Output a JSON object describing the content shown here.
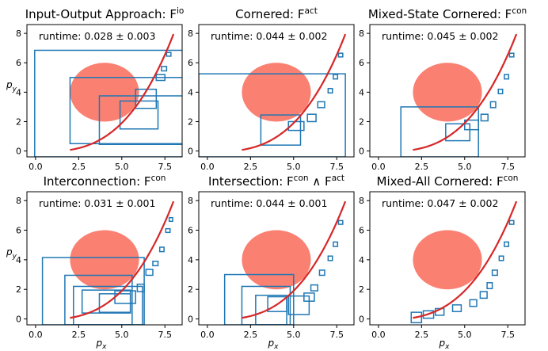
{
  "figure": {
    "xlabel": "p",
    "xlabel_sub": "x",
    "ylabel": "p",
    "ylabel_sub": "y",
    "x_ticks": [
      "0.0",
      "2.5",
      "5.0",
      "7.5"
    ],
    "y_ticks": [
      "0",
      "2",
      "4",
      "6",
      "8"
    ]
  },
  "colors": {
    "obstacle": "#fa8072",
    "boxes": "#1f77b4",
    "trajectory": "#d62728"
  },
  "chart_data": [
    {
      "type": "scatter",
      "title": "Input-Output Approach: F",
      "title_sup": "io",
      "runtime": "runtime: 0.028 ± 0.003",
      "xlim": [
        -0.5,
        8.5
      ],
      "ylim": [
        -0.4,
        8.6
      ],
      "obstacle": {
        "center": [
          4.0,
          4.0
        ],
        "rx": 2.0,
        "ry": 2.0
      },
      "trajectory": {
        "from": 2.0,
        "to": 8.0
      },
      "boxes": [
        [
          -0.05,
          8.9,
          -0.4,
          6.85
        ],
        [
          2.0,
          8.9,
          0.5,
          5.0
        ],
        [
          3.7,
          8.9,
          0.45,
          3.75
        ],
        [
          4.9,
          7.1,
          1.5,
          3.4
        ],
        [
          5.8,
          7.0,
          2.9,
          4.2
        ],
        [
          7.0,
          7.5,
          4.8,
          5.2
        ],
        [
          7.3,
          7.6,
          5.45,
          5.75
        ],
        [
          7.6,
          7.85,
          6.45,
          6.7
        ]
      ]
    },
    {
      "type": "scatter",
      "title": "Cornered: F",
      "title_sup": "act",
      "runtime": "runtime: 0.044 ± 0.002",
      "xlim": [
        -0.5,
        8.5
      ],
      "ylim": [
        -0.4,
        8.6
      ],
      "obstacle": {
        "center": [
          4.0,
          4.0
        ],
        "rx": 2.0,
        "ry": 2.0
      },
      "trajectory": {
        "from": 2.0,
        "to": 8.0
      },
      "boxes": [
        [
          -0.5,
          8.0,
          -0.4,
          5.25
        ],
        [
          3.1,
          5.4,
          0.4,
          2.45
        ],
        [
          4.7,
          5.6,
          1.4,
          2.0
        ],
        [
          5.8,
          6.3,
          2.0,
          2.5
        ],
        [
          6.4,
          6.8,
          2.95,
          3.35
        ],
        [
          7.0,
          7.25,
          3.95,
          4.25
        ],
        [
          7.3,
          7.55,
          4.9,
          5.2
        ],
        [
          7.6,
          7.85,
          6.4,
          6.65
        ]
      ]
    },
    {
      "type": "scatter",
      "title": "Mixed-State Cornered: F",
      "title_sup": "con",
      "runtime": "runtime: 0.045 ± 0.002",
      "xlim": [
        -0.5,
        8.5
      ],
      "ylim": [
        -0.4,
        8.6
      ],
      "obstacle": {
        "center": [
          4.0,
          4.0
        ],
        "rx": 2.0,
        "ry": 2.0
      },
      "trajectory": {
        "from": 2.0,
        "to": 8.0
      },
      "boxes": [
        [
          1.3,
          5.8,
          -0.4,
          3.0
        ],
        [
          3.9,
          5.3,
          0.7,
          1.85
        ],
        [
          5.0,
          5.8,
          1.45,
          2.1
        ],
        [
          5.95,
          6.35,
          2.05,
          2.5
        ],
        [
          6.5,
          6.8,
          2.95,
          3.35
        ],
        [
          6.95,
          7.2,
          3.9,
          4.2
        ],
        [
          7.3,
          7.55,
          4.9,
          5.2
        ],
        [
          7.6,
          7.85,
          6.4,
          6.65
        ]
      ]
    },
    {
      "type": "scatter",
      "title": "Interconnection: F",
      "title_sup": "con",
      "runtime": "runtime: 0.031 ± 0.001",
      "xlim": [
        -0.5,
        8.5
      ],
      "ylim": [
        -0.4,
        8.6
      ],
      "obstacle": {
        "center": [
          4.0,
          4.0
        ],
        "rx": 2.0,
        "ry": 2.0
      },
      "trajectory": {
        "from": 2.0,
        "to": 8.0
      },
      "boxes": [
        [
          0.4,
          6.3,
          -0.4,
          4.15
        ],
        [
          1.7,
          5.6,
          -0.4,
          2.95
        ],
        [
          2.2,
          6.2,
          -0.4,
          2.2
        ],
        [
          2.7,
          5.5,
          0.4,
          1.95
        ],
        [
          3.7,
          5.5,
          0.45,
          1.7
        ],
        [
          4.6,
          5.8,
          1.05,
          1.9
        ],
        [
          5.9,
          6.3,
          1.85,
          2.35
        ],
        [
          6.4,
          6.8,
          2.95,
          3.35
        ],
        [
          6.8,
          7.1,
          3.6,
          3.9
        ],
        [
          7.2,
          7.45,
          4.55,
          4.85
        ],
        [
          7.55,
          7.8,
          5.85,
          6.1
        ],
        [
          7.75,
          7.95,
          6.6,
          6.85
        ]
      ]
    },
    {
      "type": "scatter",
      "title": "Intersection: F",
      "title_sup": "con",
      "title_mid": " ∧ F",
      "title_sup2": "act",
      "runtime": "runtime: 0.044 ± 0.001",
      "xlim": [
        -0.5,
        8.5
      ],
      "ylim": [
        -0.4,
        8.6
      ],
      "obstacle": {
        "center": [
          4.0,
          4.0
        ],
        "rx": 2.0,
        "ry": 2.0
      },
      "trajectory": {
        "from": 2.0,
        "to": 8.0
      },
      "boxes": [
        [
          1.0,
          5.0,
          -0.4,
          3.0
        ],
        [
          2.0,
          4.8,
          -0.4,
          2.2
        ],
        [
          2.8,
          4.6,
          -0.4,
          1.6
        ],
        [
          3.5,
          4.6,
          0.5,
          1.5
        ],
        [
          4.7,
          5.9,
          0.3,
          1.55
        ],
        [
          5.6,
          6.2,
          1.2,
          1.75
        ],
        [
          6.0,
          6.4,
          1.9,
          2.3
        ],
        [
          6.5,
          6.8,
          2.95,
          3.3
        ],
        [
          7.0,
          7.25,
          3.95,
          4.25
        ],
        [
          7.3,
          7.55,
          4.9,
          5.2
        ],
        [
          7.6,
          7.85,
          6.4,
          6.65
        ]
      ]
    },
    {
      "type": "scatter",
      "title": "Mixed-All Cornered: F",
      "title_sup": "con",
      "runtime": "runtime: 0.047 ± 0.002",
      "xlim": [
        -0.5,
        8.5
      ],
      "ylim": [
        -0.4,
        8.6
      ],
      "obstacle": {
        "center": [
          4.0,
          4.0
        ],
        "rx": 2.0,
        "ry": 2.0
      },
      "trajectory": {
        "from": 2.0,
        "to": 8.0
      },
      "boxes": [
        [
          1.9,
          2.5,
          -0.25,
          0.45
        ],
        [
          2.6,
          3.2,
          0.05,
          0.55
        ],
        [
          3.3,
          3.8,
          0.25,
          0.7
        ],
        [
          4.3,
          4.8,
          0.5,
          0.95
        ],
        [
          5.3,
          5.7,
          0.85,
          1.3
        ],
        [
          5.9,
          6.3,
          1.4,
          1.85
        ],
        [
          6.3,
          6.6,
          2.05,
          2.45
        ],
        [
          6.6,
          6.9,
          2.95,
          3.3
        ],
        [
          7.0,
          7.25,
          3.95,
          4.25
        ],
        [
          7.3,
          7.55,
          4.9,
          5.2
        ],
        [
          7.6,
          7.85,
          6.4,
          6.65
        ]
      ]
    }
  ]
}
